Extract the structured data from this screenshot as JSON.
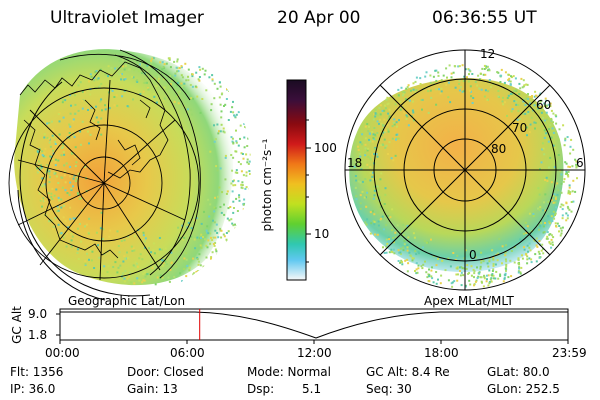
{
  "header": {
    "instrument": "Ultraviolet Imager",
    "date": "20 Apr 00",
    "time": "06:36:55 UT"
  },
  "colorbar": {
    "unit_label": "photon cm⁻²s⁻¹",
    "ticks": [
      "100",
      "10"
    ],
    "colors": [
      "#1a0b22",
      "#2a0f3a",
      "#5a0c2a",
      "#8a0a10",
      "#c8101a",
      "#f04010",
      "#f7a010",
      "#f0e020",
      "#b8e020",
      "#60d030",
      "#30c8a0",
      "#30b0e0",
      "#c8e8f0",
      "#f8f8f8"
    ]
  },
  "polar_plot": {
    "labels": {
      "top": "12",
      "left": "18",
      "right": "6",
      "bottom": "0"
    },
    "rings": [
      "60",
      "70",
      "80"
    ]
  },
  "timeline": {
    "left_title": "Geographic Lat/Lon",
    "right_title": "Apex MLat/MLT",
    "y_axis_label": "GC Alt",
    "y_ticks": [
      "9.0",
      "1.8"
    ],
    "x_ticks": [
      "00:00",
      "06:00",
      "12:00",
      "18:00",
      "23:59"
    ],
    "marker_color": "#e00000",
    "marker_fraction": 0.275
  },
  "info": {
    "flt": "Flt: 1356",
    "ip": "IP: 36.0",
    "door": "Door: Closed",
    "gain": "Gain: 13",
    "mode": "Mode: Normal",
    "dsp_label": "Dsp:",
    "dsp_value": "5.1",
    "gcalt": "GC Alt: 8.4 Re",
    "seq": "Seq: 30",
    "glat": "GLat: 80.0",
    "glon": "GLon: 252.5"
  }
}
